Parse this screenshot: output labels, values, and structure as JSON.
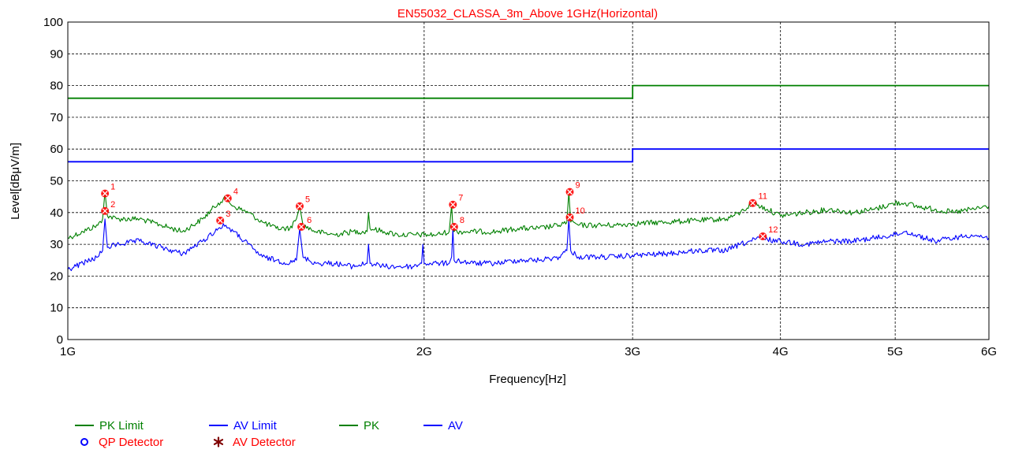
{
  "chart_data": {
    "type": "line",
    "title": "EN55032_CLASSA_3m_Above 1GHz(Horizontal)",
    "xlabel": "Frequency[Hz]",
    "ylabel": "Level[dBμV/m]",
    "x_scale": "log",
    "xlim": [
      1000000000,
      6000000000
    ],
    "ylim": [
      0,
      100
    ],
    "y_ticks": [
      0,
      10,
      20,
      30,
      40,
      50,
      60,
      70,
      80,
      90,
      100
    ],
    "y_tick_labels": [
      "0",
      "10",
      "20",
      "30",
      "40",
      "50",
      "60",
      "70",
      "80",
      "90",
      "100"
    ],
    "x_ticks": [
      1000000000,
      2000000000,
      3000000000,
      4000000000,
      5000000000,
      6000000000
    ],
    "x_tick_labels": [
      "1G",
      "2G",
      "3G",
      "4G",
      "5G",
      "6G"
    ],
    "grid": true,
    "colors": {
      "title": "#ff0000",
      "pk": "#008000",
      "av": "#0000ff",
      "marker": "#ff0000",
      "qp_detector": "#0000ff",
      "av_detector": "#800000"
    },
    "limits": [
      {
        "name": "PK Limit",
        "points": [
          [
            1000000000,
            76
          ],
          [
            3000000000,
            76
          ],
          [
            3000000000,
            80
          ],
          [
            6000000000,
            80
          ]
        ]
      },
      {
        "name": "AV Limit",
        "points": [
          [
            1000000000,
            56
          ],
          [
            3000000000,
            56
          ],
          [
            3000000000,
            60
          ],
          [
            6000000000,
            60
          ]
        ]
      }
    ],
    "series": [
      {
        "name": "PK",
        "x": [
          1000000000,
          1030000000,
          1060000000,
          1070000000,
          1075000000,
          1080000000,
          1100000000,
          1150000000,
          1200000000,
          1250000000,
          1300000000,
          1340000000,
          1360000000,
          1380000000,
          1420000000,
          1460000000,
          1500000000,
          1540000000,
          1560000000,
          1570000000,
          1580000000,
          1620000000,
          1680000000,
          1740000000,
          1790000000,
          1795000000,
          1800000000,
          1850000000,
          1900000000,
          1960000000,
          2000000000,
          2050000000,
          2100000000,
          2110000000,
          2115000000,
          2120000000,
          2200000000,
          2300000000,
          2400000000,
          2500000000,
          2600000000,
          2640000000,
          2650000000,
          2660000000,
          2700000000,
          2800000000,
          2900000000,
          3000000000,
          3200000000,
          3400000000,
          3600000000,
          3700000000,
          3790000000,
          3900000000,
          4000000000,
          4200000000,
          4400000000,
          4600000000,
          4800000000,
          5000000000,
          5100000000,
          5200000000,
          5400000000,
          5600000000,
          5800000000,
          6000000000
        ],
        "y": [
          32,
          34,
          36,
          38,
          46.5,
          39,
          38,
          38,
          36,
          34,
          38,
          43,
          44.5,
          42,
          40,
          37,
          35,
          35,
          38,
          42,
          36,
          34,
          33,
          34,
          34,
          40,
          35,
          34,
          33,
          33,
          33,
          33,
          34,
          42.5,
          35,
          34,
          34,
          34,
          35,
          35,
          36,
          37,
          46.5,
          37,
          36,
          36,
          36,
          36.5,
          37,
          37.5,
          38,
          40,
          43,
          41,
          39,
          40,
          41,
          40,
          41,
          43,
          43,
          42,
          41,
          40,
          41,
          42
        ]
      },
      {
        "name": "AV",
        "x": [
          1000000000,
          1030000000,
          1060000000,
          1070000000,
          1075000000,
          1080000000,
          1100000000,
          1150000000,
          1200000000,
          1250000000,
          1300000000,
          1340000000,
          1360000000,
          1380000000,
          1420000000,
          1460000000,
          1500000000,
          1540000000,
          1560000000,
          1570000000,
          1580000000,
          1620000000,
          1680000000,
          1740000000,
          1790000000,
          1795000000,
          1800000000,
          1850000000,
          1900000000,
          1960000000,
          1990000000,
          1995000000,
          2000000000,
          2050000000,
          2100000000,
          2110000000,
          2115000000,
          2120000000,
          2200000000,
          2300000000,
          2400000000,
          2500000000,
          2600000000,
          2640000000,
          2650000000,
          2660000000,
          2700000000,
          2800000000,
          2900000000,
          3000000000,
          3200000000,
          3400000000,
          3600000000,
          3700000000,
          3850000000,
          3900000000,
          4000000000,
          4200000000,
          4400000000,
          4600000000,
          4800000000,
          5000000000,
          5100000000,
          5200000000,
          5400000000,
          5600000000,
          5800000000,
          6000000000
        ],
        "y": [
          22,
          24,
          26,
          28,
          38,
          29,
          30,
          31,
          29,
          27,
          31,
          35,
          36,
          34,
          30,
          26,
          25,
          24,
          25,
          35,
          26,
          24,
          24,
          23,
          24,
          30,
          24,
          23,
          23,
          23,
          24,
          30,
          24,
          24,
          24,
          26,
          35,
          25,
          24,
          24,
          25,
          25,
          26,
          28,
          38,
          28,
          26,
          26,
          26,
          26.5,
          27,
          28,
          28,
          30,
          32,
          31.5,
          31,
          30,
          31,
          31,
          32,
          33,
          34,
          33,
          31,
          32,
          33,
          32
        ]
      }
    ],
    "markers": [
      {
        "label": "1",
        "x": 1075000000,
        "y": 46
      },
      {
        "label": "2",
        "x": 1075000000,
        "y": 40.5
      },
      {
        "label": "3",
        "x": 1345000000,
        "y": 37.5
      },
      {
        "label": "4",
        "x": 1365000000,
        "y": 44.5
      },
      {
        "label": "5",
        "x": 1570000000,
        "y": 42
      },
      {
        "label": "6",
        "x": 1575000000,
        "y": 35.5
      },
      {
        "label": "7",
        "x": 2115000000,
        "y": 42.5
      },
      {
        "label": "8",
        "x": 2120000000,
        "y": 35.5
      },
      {
        "label": "9",
        "x": 2655000000,
        "y": 46.5
      },
      {
        "label": "10",
        "x": 2655000000,
        "y": 38.5
      },
      {
        "label": "11",
        "x": 3790000000,
        "y": 43
      },
      {
        "label": "12",
        "x": 3865000000,
        "y": 32.5
      }
    ],
    "legend": {
      "placement": "bottom-left",
      "items": [
        {
          "label": "PK Limit",
          "kind": "line",
          "color": "#008000"
        },
        {
          "label": "AV Limit",
          "kind": "line",
          "color": "#0000ff"
        },
        {
          "label": "PK",
          "kind": "line",
          "color": "#008000"
        },
        {
          "label": "AV",
          "kind": "line",
          "color": "#0000ff"
        },
        {
          "label": "QP Detector",
          "kind": "circle",
          "color": "#0000ff"
        },
        {
          "label": "AV Detector",
          "kind": "star",
          "color": "#800000"
        }
      ]
    }
  }
}
